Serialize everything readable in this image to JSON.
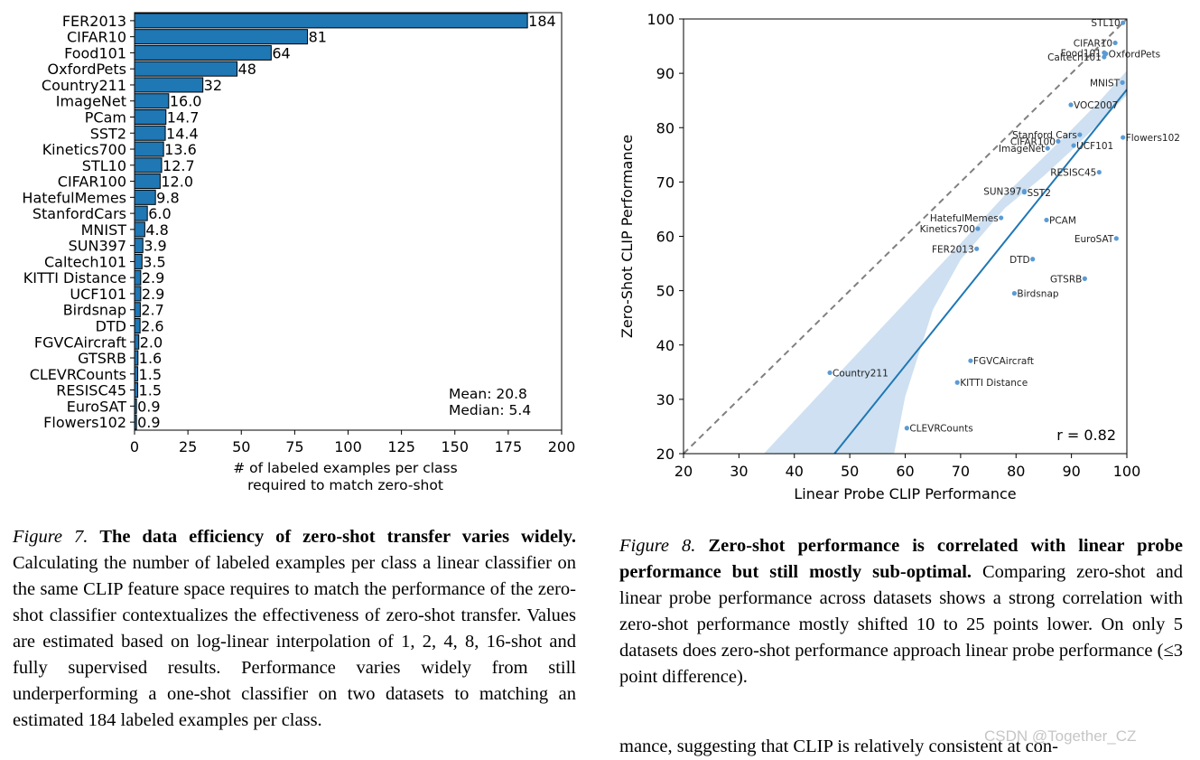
{
  "chart_data": [
    {
      "type": "bar",
      "orientation": "horizontal",
      "categories": [
        "FER2013",
        "CIFAR10",
        "Food101",
        "OxfordPets",
        "Country211",
        "ImageNet",
        "PCam",
        "SST2",
        "Kinetics700",
        "STL10",
        "CIFAR100",
        "HatefulMemes",
        "StanfordCars",
        "MNIST",
        "SUN397",
        "Caltech101",
        "KITTI Distance",
        "UCF101",
        "Birdsnap",
        "DTD",
        "FGVCAircraft",
        "GTSRB",
        "CLEVRCounts",
        "RESISC45",
        "EuroSAT",
        "Flowers102"
      ],
      "values": [
        184,
        81,
        64,
        48,
        32,
        16.0,
        14.7,
        14.4,
        13.6,
        12.7,
        12.0,
        9.8,
        6.0,
        4.8,
        3.9,
        3.5,
        2.9,
        2.9,
        2.7,
        2.6,
        2.0,
        1.6,
        1.5,
        1.5,
        0.9,
        0.9
      ],
      "value_labels": [
        "184",
        "81",
        "64",
        "48",
        "32",
        "16.0",
        "14.7",
        "14.4",
        "13.6",
        "12.7",
        "12.0",
        "9.8",
        "6.0",
        "4.8",
        "3.9",
        "3.5",
        "2.9",
        "2.9",
        "2.7",
        "2.6",
        "2.0",
        "1.6",
        "1.5",
        "1.5",
        "0.9",
        "0.9"
      ],
      "xlim": [
        0,
        200
      ],
      "xticks": [
        "0",
        "25",
        "50",
        "75",
        "100",
        "125",
        "150",
        "175",
        "200"
      ],
      "xlabel_line1": "# of labeled examples per class",
      "xlabel_line2": "required to match zero-shot",
      "stats_line1": "Mean:  20.8",
      "stats_line2": "Median: 5.4",
      "bar_color": "#1f77b4",
      "grid": false
    },
    {
      "type": "scatter",
      "xlabel": "Linear Probe CLIP Performance",
      "ylabel": "Zero-Shot CLIP Performance",
      "xlim": [
        20,
        100
      ],
      "ylim": [
        20,
        100
      ],
      "xticks": [
        "20",
        "30",
        "40",
        "50",
        "60",
        "70",
        "80",
        "90",
        "100"
      ],
      "yticks": [
        "20",
        "30",
        "40",
        "50",
        "60",
        "70",
        "80",
        "90",
        "100"
      ],
      "annotation": "r = 0.82",
      "point_color": "#5b9bd5",
      "fit_color": "#1f77b4",
      "band_color": "#c6dbef",
      "reference_line": "y = x (dashed)",
      "regression": {
        "slope": 1.27,
        "intercept": -40.0
      },
      "points": [
        {
          "label": "STL10",
          "x": 99.3,
          "y": 99.3,
          "side": "left"
        },
        {
          "label": "CIFAR10",
          "x": 97.9,
          "y": 95.6,
          "side": "left"
        },
        {
          "label": "Food101",
          "x": 95.9,
          "y": 93.8,
          "side": "left"
        },
        {
          "label": "OxfordPets",
          "x": 96.2,
          "y": 93.6,
          "side": "right"
        },
        {
          "label": "Caltech101",
          "x": 95.9,
          "y": 93.0,
          "side": "left"
        },
        {
          "label": "MNIST",
          "x": 99.2,
          "y": 88.3,
          "side": "left"
        },
        {
          "label": "VOC2007",
          "x": 89.9,
          "y": 84.2,
          "side": "right"
        },
        {
          "label": "Stanford Cars",
          "x": 91.5,
          "y": 78.7,
          "side": "left"
        },
        {
          "label": "Flowers102",
          "x": 99.3,
          "y": 78.2,
          "side": "right"
        },
        {
          "label": "CIFAR100",
          "x": 87.6,
          "y": 77.5,
          "side": "left"
        },
        {
          "label": "UCF101",
          "x": 90.4,
          "y": 76.7,
          "side": "right"
        },
        {
          "label": "ImageNet",
          "x": 85.7,
          "y": 76.2,
          "side": "left"
        },
        {
          "label": "RESISC45",
          "x": 95.0,
          "y": 71.8,
          "side": "left"
        },
        {
          "label": "SUN397",
          "x": 81.5,
          "y": 68.3,
          "side": "left"
        },
        {
          "label": "SST2",
          "x": 81.5,
          "y": 68.1,
          "side": "right"
        },
        {
          "label": "HatefulMemes",
          "x": 77.3,
          "y": 63.4,
          "side": "left"
        },
        {
          "label": "PCAM",
          "x": 85.5,
          "y": 63.0,
          "side": "right"
        },
        {
          "label": "Kinetics700",
          "x": 73.1,
          "y": 61.4,
          "side": "left"
        },
        {
          "label": "EuroSAT",
          "x": 98.1,
          "y": 59.6,
          "side": "left"
        },
        {
          "label": "FER2013",
          "x": 72.9,
          "y": 57.7,
          "side": "left"
        },
        {
          "label": "DTD",
          "x": 83.0,
          "y": 55.8,
          "side": "left"
        },
        {
          "label": "GTSRB",
          "x": 92.4,
          "y": 52.2,
          "side": "left"
        },
        {
          "label": "Birdsnap",
          "x": 79.7,
          "y": 49.5,
          "side": "right"
        },
        {
          "label": "FGVCAircraft",
          "x": 71.8,
          "y": 37.1,
          "side": "right"
        },
        {
          "label": "Country211",
          "x": 46.4,
          "y": 34.9,
          "side": "right"
        },
        {
          "label": "KITTI Distance",
          "x": 69.4,
          "y": 33.1,
          "side": "right"
        },
        {
          "label": "CLEVRCounts",
          "x": 60.3,
          "y": 24.7,
          "side": "right"
        }
      ]
    }
  ],
  "captions": {
    "fig7_label": "Figure 7.",
    "fig7_title": "The data efficiency of zero-shot transfer varies widely.",
    "fig7_body": "Calculating the number of labeled examples per class a linear classifier on the same CLIP feature space requires to match the performance of the zero-shot classifier contextualizes the effectiveness of zero-shot transfer. Values are estimated based on log-linear interpolation of 1, 2, 4, 8, 16-shot and fully supervised results. Performance varies widely from still underperforming a one-shot classifier on two datasets to matching an estimated 184 labeled examples per class.",
    "fig8_label": "Figure 8.",
    "fig8_title": "Zero-shot performance is correlated with linear probe performance but still mostly sub-optimal.",
    "fig8_body": "Comparing zero-shot and linear probe performance across datasets shows a strong correlation with zero-shot performance mostly shifted 10 to 25 points lower. On only 5 datasets does zero-shot performance approach linear probe performance (≤3 point difference).",
    "continuation": "mance, suggesting that CLIP is relatively consistent at con-"
  },
  "watermark": "CSDN @Together_CZ"
}
